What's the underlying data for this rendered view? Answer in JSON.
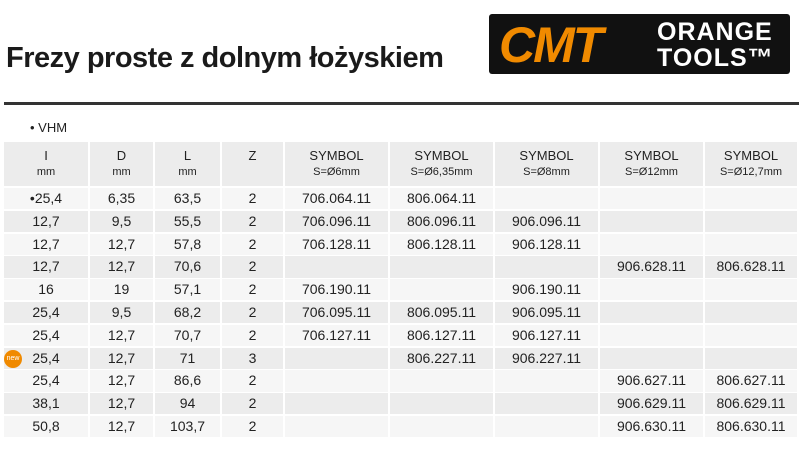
{
  "header": {
    "title": "Frezy proste z dolnym łożyskiem"
  },
  "logo": {
    "brand": "CMT",
    "line1": "ORANGE",
    "line2": "TOOLS™"
  },
  "section": "• VHM",
  "table": {
    "columns": [
      {
        "label": "I",
        "unit": "mm"
      },
      {
        "label": "D",
        "unit": "mm"
      },
      {
        "label": "L",
        "unit": "mm"
      },
      {
        "label": "Z"
      },
      {
        "label": "SYMBOL",
        "unit": "S=Ø6mm"
      },
      {
        "label": "SYMBOL",
        "unit": "S=Ø6,35mm"
      },
      {
        "label": "SYMBOL",
        "unit": "S=Ø8mm"
      },
      {
        "label": "SYMBOL",
        "unit": "S=Ø12mm"
      },
      {
        "label": "SYMBOL",
        "unit": "S=Ø12,7mm"
      }
    ],
    "rows": [
      {
        "cells": [
          "•25,4",
          "6,35",
          "63,5",
          "2",
          "706.064.11",
          "806.064.11",
          null,
          null,
          null
        ]
      },
      {
        "cells": [
          "12,7",
          "9,5",
          "55,5",
          "2",
          "706.096.11",
          "806.096.11",
          "906.096.11",
          null,
          null
        ]
      },
      {
        "cells": [
          "12,7",
          "12,7",
          "57,8",
          "2",
          "706.128.11",
          "806.128.11",
          "906.128.11",
          null,
          null
        ]
      },
      {
        "cells": [
          "12,7",
          "12,7",
          "70,6",
          "2",
          null,
          null,
          null,
          "906.628.11",
          "806.628.11"
        ]
      },
      {
        "cells": [
          "16",
          "19",
          "57,1",
          "2",
          "706.190.11",
          null,
          "906.190.11",
          null,
          null
        ]
      },
      {
        "cells": [
          "25,4",
          "9,5",
          "68,2",
          "2",
          "706.095.11",
          "806.095.11",
          "906.095.11",
          null,
          null
        ]
      },
      {
        "cells": [
          "25,4",
          "12,7",
          "70,7",
          "2",
          "706.127.11",
          "806.127.11",
          "906.127.11",
          null,
          null
        ]
      },
      {
        "badge": "new",
        "cells": [
          "25,4",
          "12,7",
          "71",
          "3",
          null,
          "806.227.11",
          "906.227.11",
          null,
          null
        ]
      },
      {
        "cells": [
          "25,4",
          "12,7",
          "86,6",
          "2",
          null,
          null,
          null,
          "906.627.11",
          "806.627.11"
        ]
      },
      {
        "cells": [
          "38,1",
          "12,7",
          "94",
          "2",
          null,
          null,
          null,
          "906.629.11",
          "806.629.11"
        ]
      },
      {
        "cells": [
          "50,8",
          "12,7",
          "103,7",
          "2",
          null,
          null,
          null,
          "906.630.11",
          "806.630.11"
        ]
      }
    ]
  }
}
